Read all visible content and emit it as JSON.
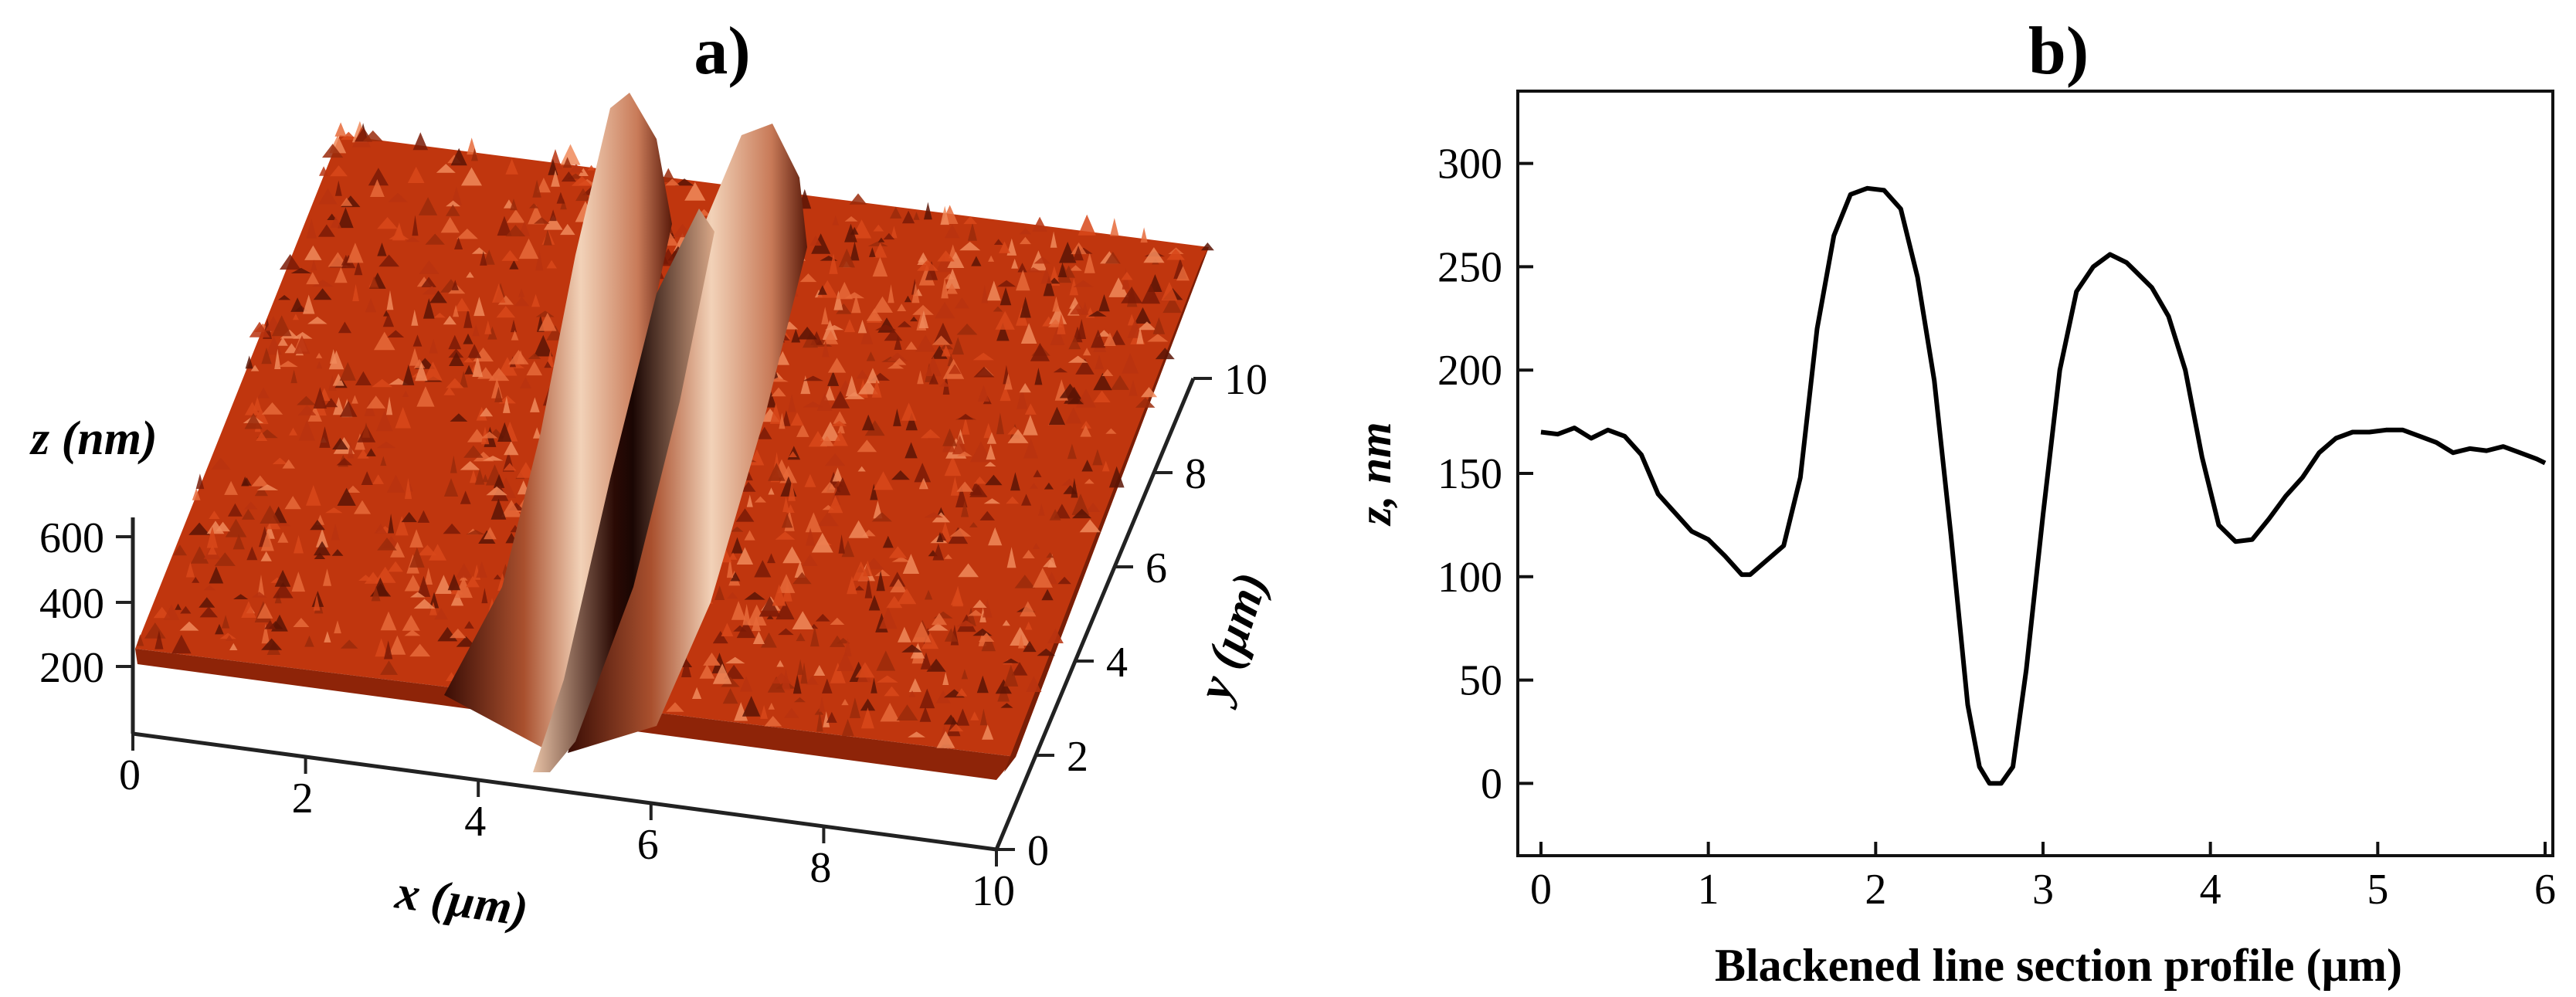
{
  "panel_a": {
    "label": "a)",
    "z_label": "z (nm)",
    "x_label": "x (µm)",
    "y_label": "y (µm)"
  },
  "panel_b": {
    "label": "b)",
    "ylabel": "z, nm",
    "xlabel": "Blackened line section profile (µm)"
  },
  "colors": {
    "surface_base": "#c0360e",
    "surface_dark": "#2a0a04",
    "surface_light": "#f2d2b8",
    "line": "#000000"
  },
  "chart_data": [
    {
      "type": "surface3d",
      "title": "a)",
      "xlabel": "x (µm)",
      "ylabel": "y (µm)",
      "zlabel": "z (nm)",
      "x_ticks": [
        "0",
        "2",
        "4",
        "6",
        "8",
        "10"
      ],
      "y_ticks": [
        "0",
        "2",
        "4",
        "6",
        "8",
        "10"
      ],
      "z_ticks": [
        "200",
        "400",
        "600"
      ],
      "xlim": [
        0,
        10
      ],
      "ylim": [
        0,
        10
      ],
      "baseline_height_nm": 300,
      "trench_x_um": 5,
      "ridge_peak_x_um": [
        4.3,
        6.0
      ],
      "ridge_peak_height_nm": 650
    },
    {
      "type": "line",
      "title": "b)",
      "xlabel": "Blackened line section profile (µm)",
      "ylabel": "z, nm",
      "xlim": [
        0,
        6
      ],
      "ylim": [
        -35,
        335
      ],
      "x_ticks": [
        "0",
        "1",
        "2",
        "3",
        "4",
        "5",
        "6"
      ],
      "y_ticks": [
        "0",
        "50",
        "100",
        "150",
        "200",
        "250",
        "300"
      ],
      "grid": false,
      "series": [
        {
          "x": [
            0,
            0.1,
            0.2,
            0.3,
            0.4,
            0.5,
            0.6,
            0.7,
            0.8,
            0.9,
            1.0,
            1.1,
            1.2,
            1.25,
            1.35,
            1.45,
            1.55,
            1.65,
            1.75,
            1.85,
            1.95,
            2.05,
            2.15,
            2.25,
            2.35,
            2.45,
            2.55,
            2.62,
            2.68,
            2.75,
            2.82,
            2.9,
            3.0,
            3.1,
            3.2,
            3.3,
            3.4,
            3.5,
            3.55,
            3.65,
            3.75,
            3.85,
            3.95,
            4.05,
            4.15,
            4.25,
            4.35,
            4.45,
            4.55,
            4.65,
            4.75,
            4.85,
            4.95,
            5.05,
            5.15,
            5.25,
            5.35,
            5.45,
            5.55,
            5.65,
            5.75,
            5.85,
            5.95,
            6.0
          ],
          "y": [
            170,
            169,
            172,
            167,
            171,
            168,
            159,
            140,
            131,
            122,
            118,
            110,
            101,
            101,
            108,
            115,
            148,
            220,
            265,
            285,
            288,
            287,
            278,
            245,
            195,
            120,
            38,
            8,
            0,
            0,
            8,
            55,
            130,
            200,
            238,
            250,
            256,
            252,
            248,
            240,
            226,
            200,
            158,
            125,
            117,
            118,
            128,
            139,
            148,
            160,
            167,
            170,
            170,
            171,
            171,
            168,
            165,
            160,
            162,
            161,
            163,
            160,
            157,
            155
          ]
        }
      ]
    }
  ]
}
